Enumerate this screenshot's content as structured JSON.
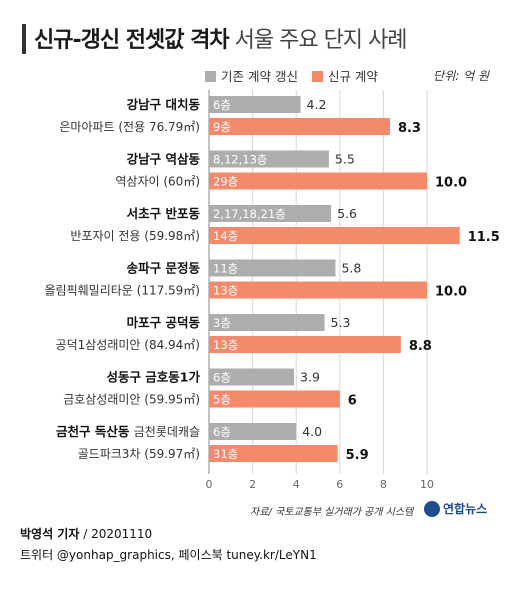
{
  "title": {
    "bold": "신규-갱신 전셋값 격차",
    "light": "서울 주요 단지 사례"
  },
  "unit": "단위: 억 원",
  "source": "자료/ 국토교통부 실거래가 공개 시스템",
  "logo": "연합뉴스",
  "credit": {
    "author": "박영석 기자",
    "date": "20201110"
  },
  "social": "트위터 @yonhap_graphics, 페이스북 tuney.kr/LeYN1",
  "colors": {
    "existing": "#adadad",
    "new": "#f4896b",
    "grid": "#d8d8d8",
    "axis": "#888888"
  },
  "chart_data": {
    "type": "bar",
    "orientation": "horizontal",
    "xlim": [
      0,
      11.5
    ],
    "xticks": [
      0,
      2,
      4,
      6,
      8,
      10
    ],
    "categories": [
      {
        "district": "강남구 대치동",
        "complex": "은마아파트 (전용 76.79㎡)"
      },
      {
        "district": "강남구 역삼동",
        "complex": "역삼자이 (60㎡)"
      },
      {
        "district": "서초구 반포동",
        "complex": "반포자이 전용 (59.98㎡)"
      },
      {
        "district": "송파구 문정동",
        "complex": "올림픽훼밀리타운 (117.59㎡)"
      },
      {
        "district": "마포구 공덕동",
        "complex": "공덕1삼성래미안 (84.94㎡)"
      },
      {
        "district": "성동구 금호동1가",
        "complex": "금호삼성래미안 (59.95㎡)"
      },
      {
        "district": "금천구 독산동",
        "complex": "골드파크3차 (59.97㎡)",
        "complex_line1": "금천롯데캐슬"
      }
    ],
    "series": [
      {
        "name": "기존 계약 갱신",
        "values": [
          4.2,
          5.5,
          5.6,
          5.8,
          5.3,
          3.9,
          4.0
        ],
        "value_labels": [
          "4.2",
          "5.5",
          "5.6",
          "5.8",
          "5.3",
          "3.9",
          "4.0"
        ],
        "floors": [
          "6층",
          "8,12,13층",
          "2,17,18,21층",
          "11층",
          "3층",
          "6층",
          "6층"
        ]
      },
      {
        "name": "신규 계약",
        "values": [
          8.3,
          10.0,
          11.5,
          10.0,
          8.8,
          6.0,
          5.9
        ],
        "value_labels": [
          "8.3",
          "10.0",
          "11.5",
          "10.0",
          "8.8",
          "6",
          "5.9"
        ],
        "floors": [
          "9층",
          "29층",
          "14층",
          "13층",
          "13층",
          "5층",
          "31층"
        ]
      }
    ]
  }
}
